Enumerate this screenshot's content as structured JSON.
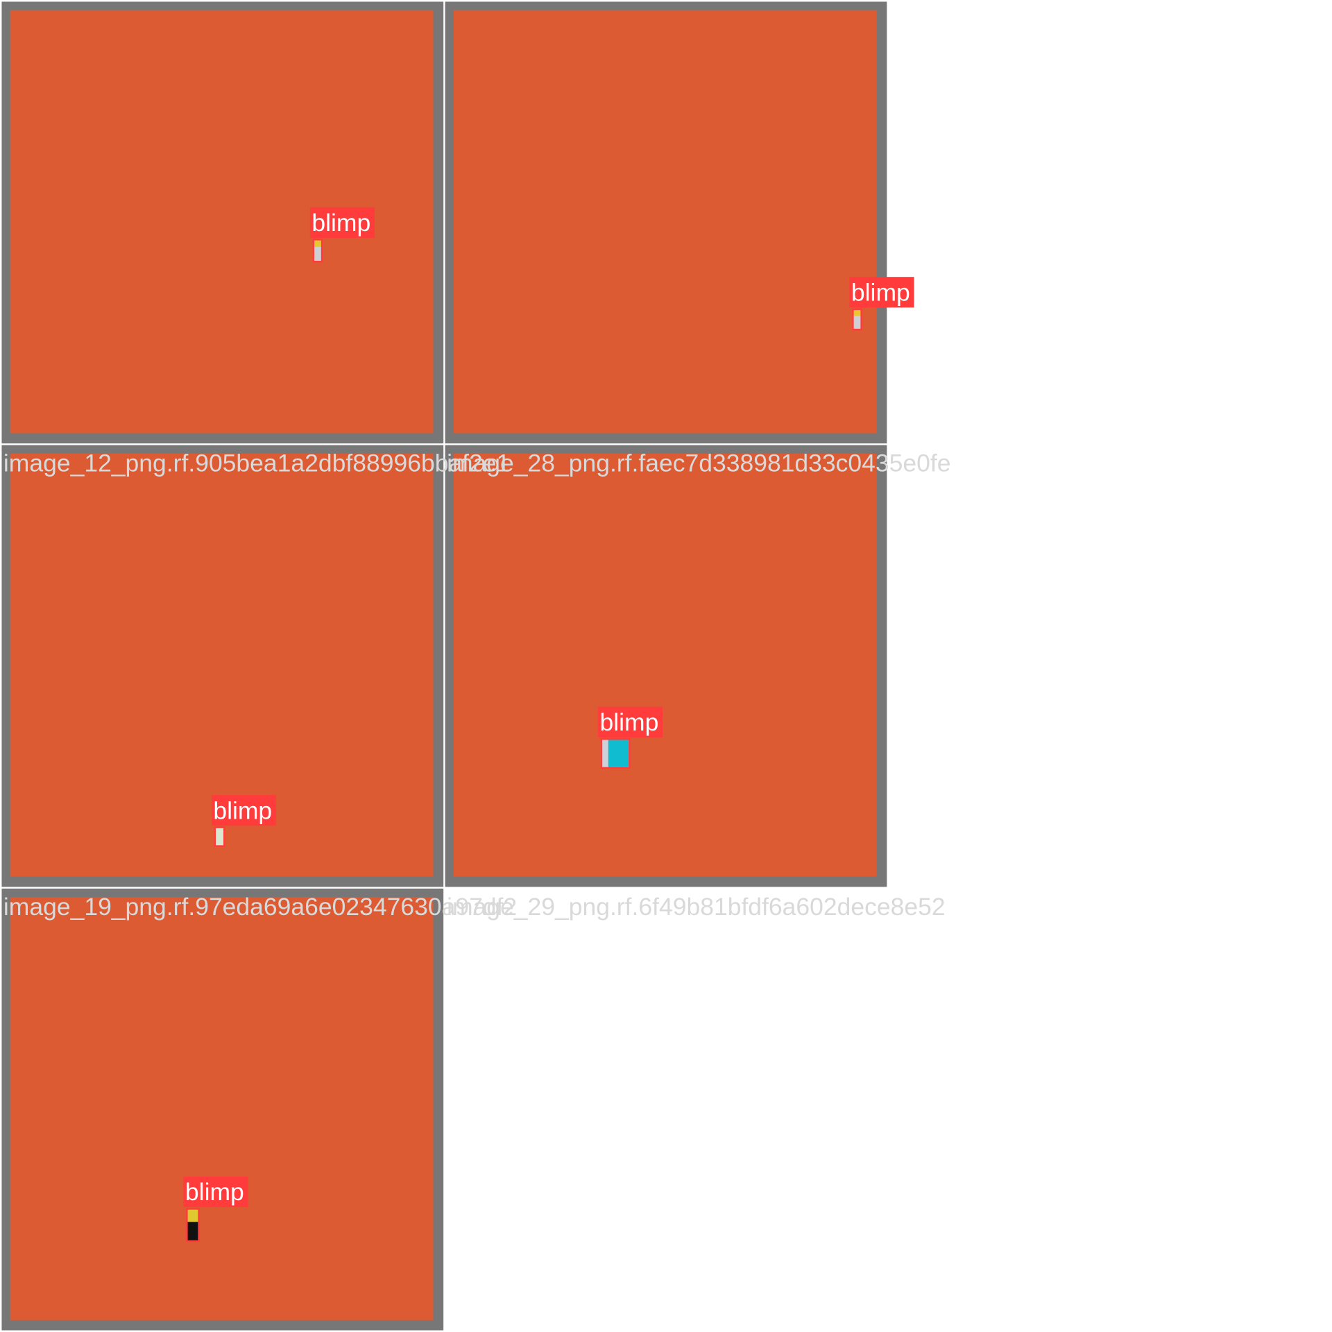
{
  "tiles": [
    {
      "caption": "image_12_png.rf.905bea1a2dbf88996bbaf2e1",
      "detections": [
        {
          "label": "blimp"
        }
      ]
    },
    {
      "caption": "image_28_png.rf.faec7d338981d33c0435e0fe",
      "detections": [
        {
          "label": "blimp"
        }
      ]
    },
    {
      "caption": "image_19_png.rf.97eda69a6e02347630a97df2",
      "detections": [
        {
          "label": "blimp"
        }
      ]
    },
    {
      "caption": "image_29_png.rf.6f49b81bfdf6a602dece8e52",
      "detections": [
        {
          "label": "blimp"
        }
      ]
    },
    {
      "caption": null,
      "detections": [
        {
          "label": "blimp"
        }
      ]
    }
  ]
}
